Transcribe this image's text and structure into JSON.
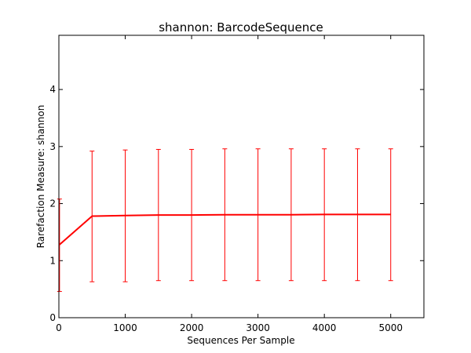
{
  "chart_data": {
    "type": "line",
    "title": "shannon: BarcodeSequence",
    "xlabel": "Sequences Per Sample",
    "ylabel": "Rarefaction Measure: shannon",
    "xlim": [
      0,
      5500
    ],
    "ylim": [
      0,
      4.95
    ],
    "xticks": [
      "0",
      "1000",
      "2000",
      "3000",
      "4000",
      "5000"
    ],
    "yticks": [
      "0",
      "1",
      "2",
      "3",
      "4"
    ],
    "grid": false,
    "legend": false,
    "series": [
      {
        "color": "#ff0000",
        "x": [
          10,
          500,
          1000,
          1500,
          2000,
          2500,
          3000,
          3500,
          4000,
          4500,
          5000
        ],
        "y": [
          1.28,
          1.78,
          1.79,
          1.8,
          1.8,
          1.805,
          1.805,
          1.805,
          1.81,
          1.81,
          1.81
        ],
        "err_low": [
          0.46,
          0.63,
          0.63,
          0.65,
          0.65,
          0.65,
          0.65,
          0.65,
          0.65,
          0.65,
          0.65
        ],
        "err_high": [
          2.08,
          2.92,
          2.94,
          2.95,
          2.95,
          2.96,
          2.96,
          2.96,
          2.96,
          2.96,
          2.96
        ]
      }
    ]
  }
}
